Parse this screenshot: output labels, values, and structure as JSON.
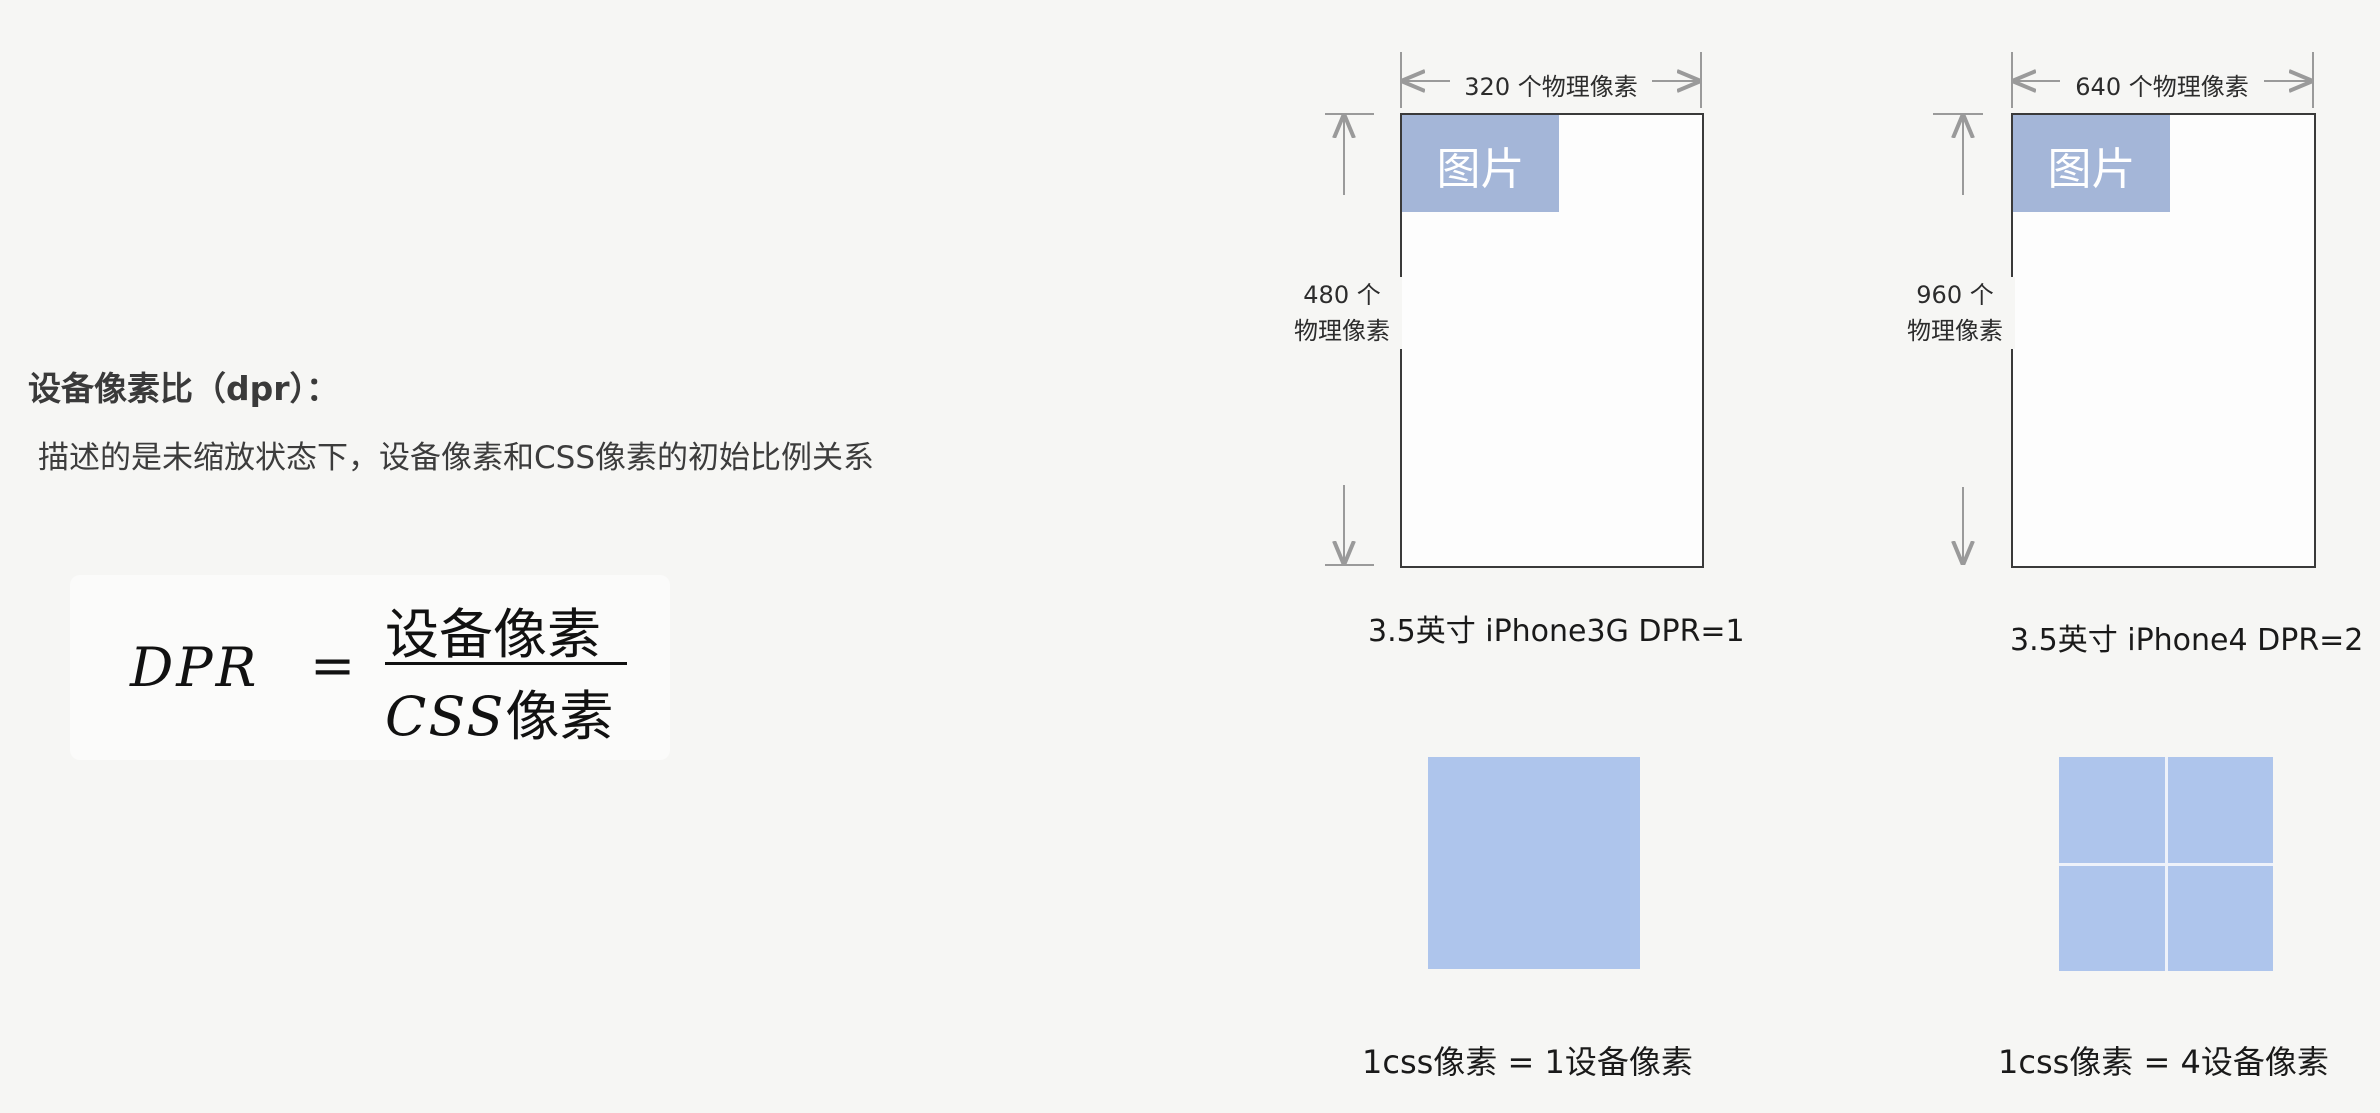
{
  "left_text": {
    "heading": "设备像素比（dpr）：",
    "description": "描述的是未缩放状态下，设备像素和CSS像素的初始比例关系"
  },
  "formula": {
    "lhs": "DPR",
    "equals": "=",
    "numerator": "设备像素",
    "denominator_italic": "CSS",
    "denominator_rest": "像素"
  },
  "devices": [
    {
      "width_label": "320 个物理像素",
      "height_label_line1": "480 个",
      "height_label_line2": "物理像素",
      "image_label": "图片",
      "caption": "3.5英寸 iPhone3G DPR=1",
      "bottom_caption": "1css像素 = 1设备像素"
    },
    {
      "width_label": "640 个物理像素",
      "height_label_line1": "960 个",
      "height_label_line2": "物理像素",
      "image_label": "图片",
      "caption": "3.5英寸 iPhone4 DPR=2",
      "bottom_caption": "1css像素 = 4设备像素"
    }
  ],
  "colors": {
    "image_block": "#a4b6d8",
    "pixel_block": "#aec5ec",
    "arrow": "#9a9a9a",
    "background": "#f6f6f4"
  }
}
